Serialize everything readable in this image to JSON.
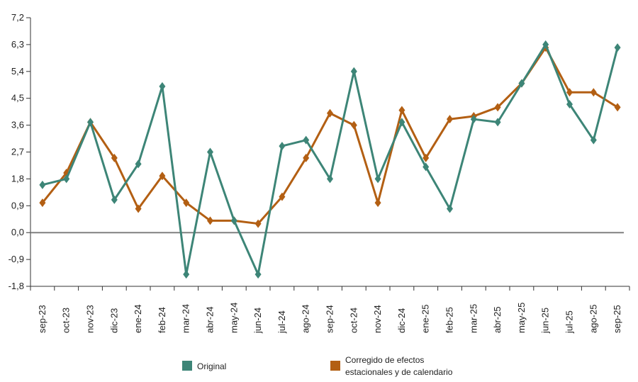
{
  "chart_data": {
    "type": "line",
    "categories": [
      "sep-23",
      "oct-23",
      "nov-23",
      "dic-23",
      "ene-24",
      "feb-24",
      "mar-24",
      "abr-24",
      "may-24",
      "jun-24",
      "jul-24",
      "ago-24",
      "sep-24",
      "oct-24",
      "nov-24",
      "dic-24",
      "ene-25",
      "feb-25",
      "mar-25",
      "abr-25",
      "may-25",
      "jun-25",
      "jul-25",
      "ago-25",
      "sep-25"
    ],
    "series": [
      {
        "name": "Original",
        "color": "#3d8577",
        "values": [
          1.6,
          1.8,
          3.7,
          1.1,
          2.3,
          4.9,
          -1.4,
          2.7,
          0.4,
          -1.4,
          2.9,
          3.1,
          1.8,
          5.4,
          1.8,
          3.7,
          2.2,
          0.8,
          3.8,
          3.7,
          5.0,
          6.3,
          4.3,
          3.1,
          6.2
        ]
      },
      {
        "name": "Corregido de efectos estacionales y de calendario",
        "color": "#b35f13",
        "values": [
          1.0,
          2.0,
          3.7,
          2.5,
          0.8,
          1.9,
          1.0,
          0.4,
          0.4,
          0.3,
          1.2,
          2.5,
          4.0,
          3.6,
          1.0,
          4.1,
          2.5,
          3.8,
          3.9,
          4.2,
          5.0,
          6.2,
          4.7,
          4.7,
          4.2
        ]
      }
    ],
    "yticks": [
      "7,2",
      "6,3",
      "5,4",
      "4,5",
      "3,6",
      "2,7",
      "1,8",
      "0,9",
      "0,0",
      "-0,9",
      "-1,8"
    ],
    "ylim": [
      -1.8,
      7.2
    ],
    "legend": {
      "original": "Original",
      "adjusted_line1": "Corregido de efectos",
      "adjusted_line2": "estacionales y de calendario"
    },
    "zero_line_color": "#808080",
    "axis_color": "#333333"
  }
}
